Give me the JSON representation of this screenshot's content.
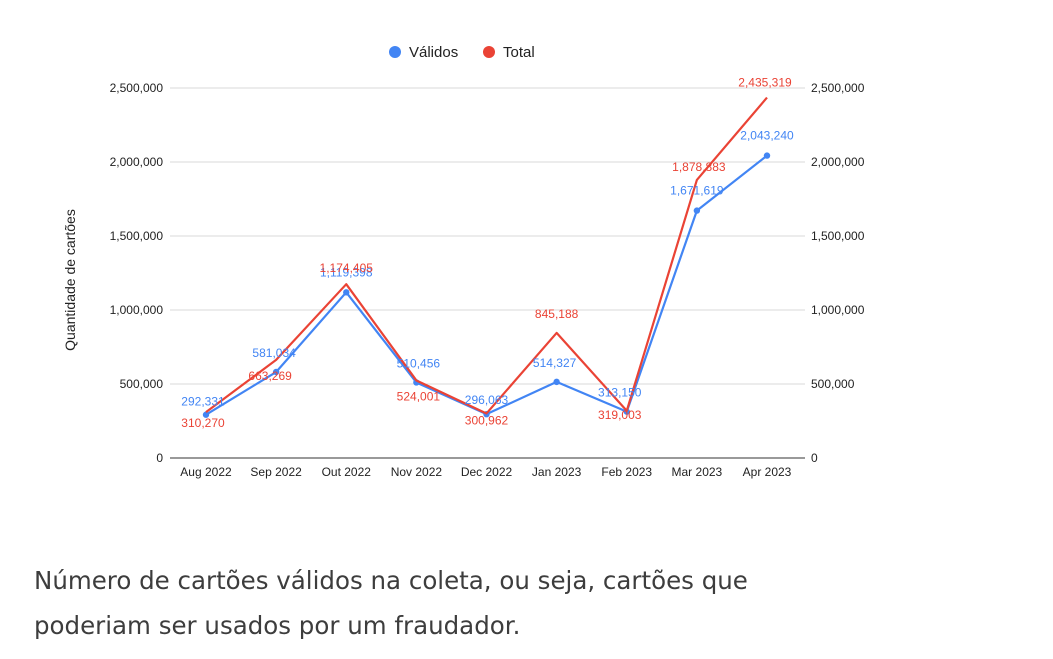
{
  "chart_data": {
    "type": "line",
    "categories": [
      "Aug 2022",
      "Sep 2022",
      "Out 2022",
      "Nov 2022",
      "Dec 2022",
      "Jan 2023",
      "Feb 2023",
      "Mar 2023",
      "Apr 2023"
    ],
    "series": [
      {
        "name": "Válidos",
        "color": "#4285f4",
        "values": [
          292331,
          581034,
          1119398,
          510456,
          296063,
          514327,
          313150,
          1671619,
          2043240
        ],
        "labels": [
          "292,331",
          "581,034",
          "1,119,398",
          "510,456",
          "296,063",
          "514,327",
          "313,150",
          "1,671,619",
          "2,043,240"
        ]
      },
      {
        "name": "Total",
        "color": "#ea4335",
        "values": [
          310270,
          663269,
          1174405,
          524001,
          300962,
          845188,
          319003,
          1878883,
          2435319
        ],
        "labels": [
          "310,270",
          "663,269",
          "1,174,405",
          "524,001",
          "300,962",
          "845,188",
          "319,003",
          "1,878,883",
          "2,435,319"
        ]
      }
    ],
    "ylabel": "Quantidade de cartões",
    "ylim": [
      0,
      2500000
    ],
    "yticks": [
      0,
      500000,
      1000000,
      1500000,
      2000000,
      2500000
    ],
    "ytick_labels": [
      "0",
      "500,000",
      "1,000,000",
      "1,500,000",
      "2,000,000",
      "2,500,000"
    ],
    "grid": true,
    "legend_position": "top-center",
    "secondary_y_axis": true
  },
  "caption": {
    "line1": "Número de cartões válidos na coleta, ou seja, cartões que",
    "line2": "poderiam ser usados por um fraudador."
  }
}
